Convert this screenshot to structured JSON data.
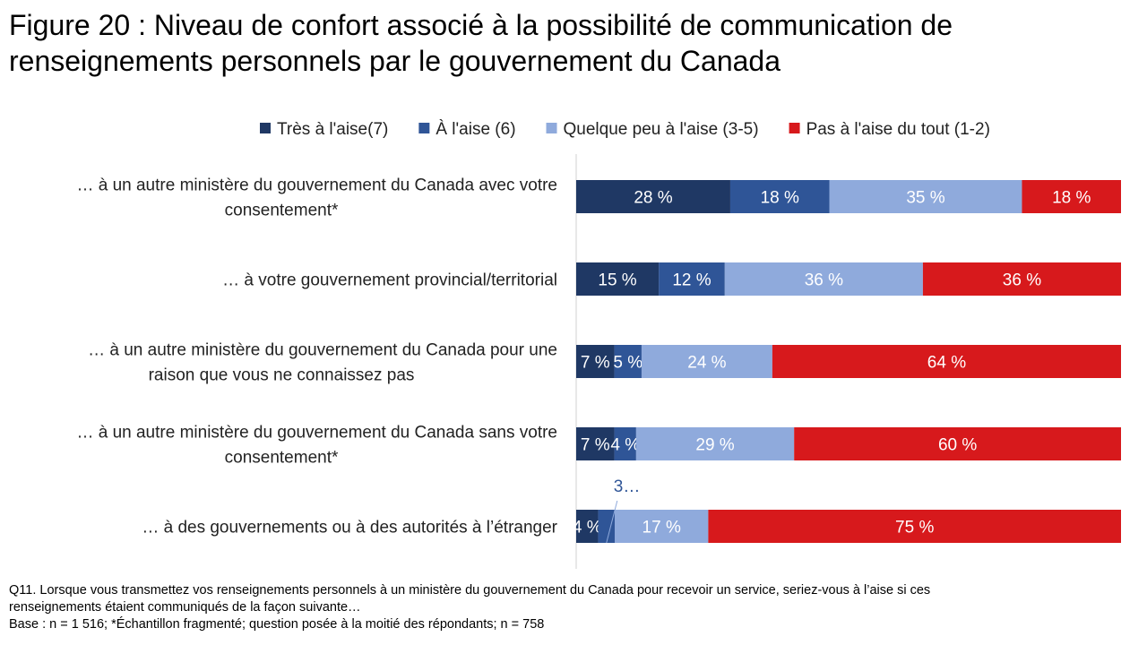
{
  "title": {
    "line1": "Figure 20 : Niveau de confort associé à la possibilité de communication de",
    "line2": "renseignements personnels par le gouvernement du Canada"
  },
  "chart_data": {
    "type": "bar",
    "orientation": "horizontal",
    "stacked": true,
    "normalized": true,
    "title": "Figure 20 : Niveau de confort associé à la possibilité de communication de renseignements personnels par le gouvernement du Canada",
    "legend_position": "top-right",
    "categories": [
      [
        "… à un autre ministère du gouvernement du Canada avec votre",
        "consentement*"
      ],
      [
        "… à votre gouvernement provincial/territorial"
      ],
      [
        "… à un autre ministère du gouvernement du Canada pour une",
        "raison que vous ne connaissez pas"
      ],
      [
        "… à un autre ministère du gouvernement du Canada sans votre",
        "consentement*"
      ],
      [
        "… à des gouvernements ou à des autorités à l’étranger"
      ]
    ],
    "series": [
      {
        "name": "Très à l'aise(7)",
        "color": "#1f3864",
        "values": [
          28,
          15,
          7,
          7,
          4
        ],
        "labels": [
          "28 %",
          "15 %",
          "7 %",
          "7 %",
          "4 %"
        ]
      },
      {
        "name": "À l'aise (6)",
        "color": "#2f5597",
        "values": [
          18,
          12,
          5,
          4,
          3
        ],
        "labels": [
          "18 %",
          "12 %",
          "5 %",
          "4 %",
          "3…"
        ]
      },
      {
        "name": "Quelque peu à l'aise (3-5)",
        "color": "#8faadc",
        "values": [
          35,
          36,
          24,
          29,
          17
        ],
        "labels": [
          "35 %",
          "36 %",
          "24 %",
          "29 %",
          "17 %"
        ]
      },
      {
        "name": "Pas à l'aise du tout (1-2)",
        "color": "#d7191c",
        "values": [
          18,
          36,
          64,
          60,
          75
        ],
        "labels": [
          "18 %",
          "36 %",
          "64 %",
          "60 %",
          "75 %"
        ]
      }
    ]
  },
  "footnote": {
    "line1": "Q11. Lorsque vous transmettez vos renseignements personnels à un ministère du gouvernement du Canada pour recevoir un service, seriez-vous à l’aise si ces",
    "line2": "renseignements étaient communiqués de la façon suivante…",
    "line3": "Base : n = 1 516; *Échantillon fragmenté; question posée à la moitié des répondants; n = 758"
  }
}
